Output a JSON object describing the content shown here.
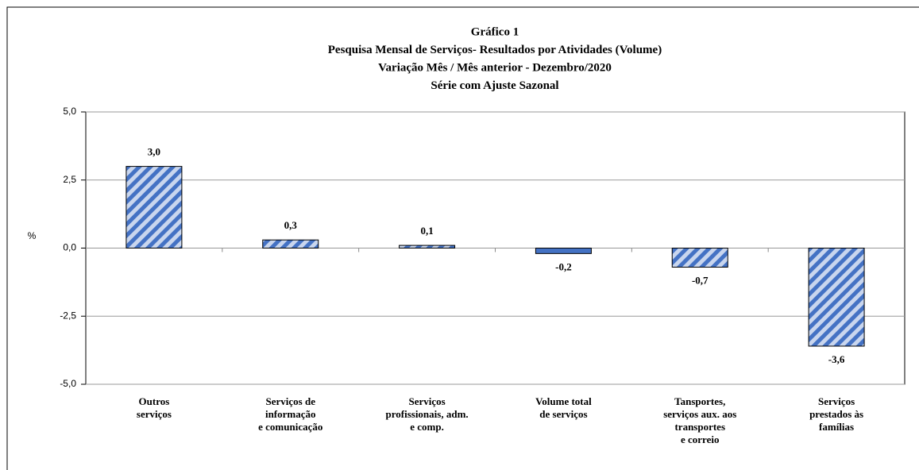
{
  "chart_data": {
    "type": "bar",
    "title": [
      "Gráfico 1",
      "Pesquisa Mensal de Serviços- Resultados por Atividades (Volume)",
      "Variação Mês / Mês anterior - Dezembro/2020",
      "Série com Ajuste Sazonal"
    ],
    "ylabel": "%",
    "categories": [
      [
        "Outros",
        "serviços"
      ],
      [
        "Serviços de",
        "informação",
        "e comunicação"
      ],
      [
        "Serviços",
        "profissionais, adm.",
        "e comp."
      ],
      [
        "Volume total",
        "de serviços"
      ],
      [
        "Tansportes,",
        "serviços aux. aos",
        "transportes",
        "e correio"
      ],
      [
        "Serviços",
        "prestados às",
        "famílias"
      ]
    ],
    "values": [
      3.0,
      0.3,
      0.1,
      -0.2,
      -0.7,
      -3.6
    ],
    "value_labels": [
      "3,0",
      "0,3",
      "0,1",
      "-0,2",
      "-0,7",
      "-3,6"
    ],
    "fills": [
      "hatched",
      "hatched",
      "hatched",
      "solid",
      "hatched",
      "hatched"
    ],
    "color": "#4472c4",
    "hatch_color": "#c9d6ee",
    "ylim": [
      -5,
      5
    ],
    "yticks": [
      {
        "value": -5,
        "label": "-5,0"
      },
      {
        "value": -2.5,
        "label": "-2,5"
      },
      {
        "value": 0,
        "label": "0,0"
      },
      {
        "value": 2.5,
        "label": "2,5"
      },
      {
        "value": 5,
        "label": "5,0"
      }
    ],
    "grid": true
  }
}
